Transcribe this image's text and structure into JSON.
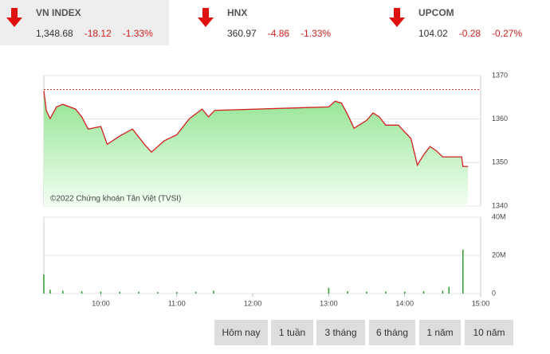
{
  "indices": [
    {
      "name": "VN INDEX",
      "value": "1,348.68",
      "change": "-18.12",
      "percent": "-1.33%"
    },
    {
      "name": "HNX",
      "value": "360.97",
      "change": "-4.86",
      "percent": "-1.33%"
    },
    {
      "name": "UPCOM",
      "value": "104.02",
      "change": "-0.28",
      "percent": "-0.27%"
    }
  ],
  "chart_data": [
    {
      "type": "line",
      "color": "#d42020",
      "annotation": "©2022 Chứng khoán Tân Việt (TVSI)",
      "x": [
        "09:15",
        "09:17",
        "09:20",
        "09:25",
        "09:30",
        "09:40",
        "09:45",
        "09:50",
        "10:00",
        "10:05",
        "10:15",
        "10:25",
        "10:35",
        "10:40",
        "10:50",
        "11:00",
        "11:10",
        "11:20",
        "11:25",
        "11:30",
        "13:00",
        "13:05",
        "13:10",
        "13:15",
        "13:20",
        "13:30",
        "13:35",
        "13:40",
        "13:45",
        "13:55",
        "14:05",
        "14:10",
        "14:15",
        "14:20",
        "14:25",
        "14:30",
        "14:45",
        "14:46",
        "14:50"
      ],
      "values": [
        1366.5,
        1361.9,
        1360.1,
        1362.8,
        1363.4,
        1362.3,
        1360.5,
        1357.7,
        1358.3,
        1354.2,
        1356.1,
        1357.7,
        1354.0,
        1352.4,
        1355.0,
        1356.4,
        1360.1,
        1362.3,
        1360.5,
        1362.0,
        1362.8,
        1364.1,
        1363.7,
        1361.0,
        1357.9,
        1359.7,
        1361.4,
        1360.5,
        1358.6,
        1358.6,
        1355.5,
        1349.4,
        1351.8,
        1353.7,
        1352.7,
        1351.3,
        1351.3,
        1349.1,
        1349.1
      ],
      "reference_line": 1366.8,
      "xlim": [
        "09:15",
        "15:00"
      ],
      "ylim": [
        1340,
        1370
      ],
      "yticks": [
        1340,
        1350,
        1360,
        1370
      ],
      "grid": true
    },
    {
      "type": "bar",
      "color": "#2e9a2e",
      "x": [
        "09:15",
        "09:20",
        "09:30",
        "09:45",
        "10:00",
        "10:15",
        "10:30",
        "10:45",
        "11:00",
        "11:15",
        "11:29",
        "13:00",
        "13:15",
        "13:30",
        "13:45",
        "14:00",
        "14:15",
        "14:30",
        "14:35",
        "14:46"
      ],
      "values": [
        10000000,
        2000000,
        1500000,
        1200000,
        1000000,
        900000,
        900000,
        800000,
        800000,
        900000,
        1500000,
        3000000,
        1200000,
        1000000,
        1100000,
        1000000,
        1200000,
        1500000,
        3500000,
        23000000
      ],
      "xlim": [
        "09:15",
        "15:00"
      ],
      "xticks": [
        "10:00",
        "11:00",
        "12:00",
        "13:00",
        "14:00",
        "15:00"
      ],
      "ylim": [
        0,
        40000000
      ],
      "yticks": [
        0,
        {
          "value": 20000000,
          "label": "20M"
        },
        {
          "value": 40000000,
          "label": "40M"
        }
      ],
      "grid": true
    }
  ],
  "buttons": [
    "Hôm nay",
    "1 tuần",
    "3 tháng",
    "6 tháng",
    "1 năm",
    "10 năm"
  ]
}
